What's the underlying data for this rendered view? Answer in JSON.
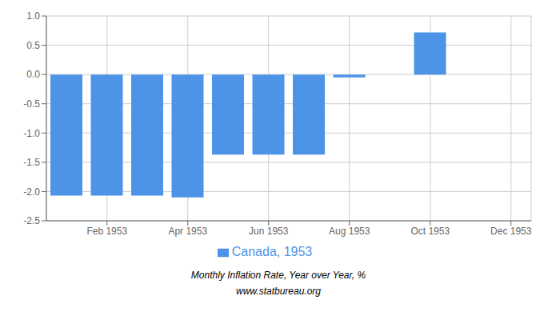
{
  "chart_data": {
    "type": "bar",
    "x": [
      1,
      2,
      3,
      4,
      5,
      6,
      7,
      8,
      9,
      10,
      11,
      12
    ],
    "series": [
      {
        "name": "Canada, 1953",
        "color": "#4d94e8",
        "values": [
          -2.07,
          -2.07,
          -2.07,
          -2.1,
          -1.37,
          -1.37,
          -1.37,
          -0.05,
          null,
          0.72,
          null,
          null
        ]
      }
    ],
    "xlim": [
      0.5,
      12.5
    ],
    "xticks": [
      {
        "value": 2,
        "label": "Feb 1953"
      },
      {
        "value": 4,
        "label": "Apr 1953"
      },
      {
        "value": 6,
        "label": "Jun 1953"
      },
      {
        "value": 8,
        "label": "Aug 1953"
      },
      {
        "value": 10,
        "label": "Oct 1953"
      },
      {
        "value": 12,
        "label": "Dec 1953"
      }
    ],
    "ylim": [
      -2.5,
      1.0
    ],
    "yticks": [
      -2.5,
      {
        "value": -2.0,
        "label": "-2.0"
      },
      -1.5,
      {
        "value": -1.0,
        "label": "-1.0"
      },
      -0.5,
      {
        "value": 0.0,
        "label": "0.0"
      },
      0.5,
      {
        "value": 1.0,
        "label": "1.0"
      }
    ],
    "grid": true,
    "legend": "bottom",
    "annotations": [
      "Monthly Inflation Rate, Year over Year, %",
      "www.statbureau.org"
    ]
  }
}
